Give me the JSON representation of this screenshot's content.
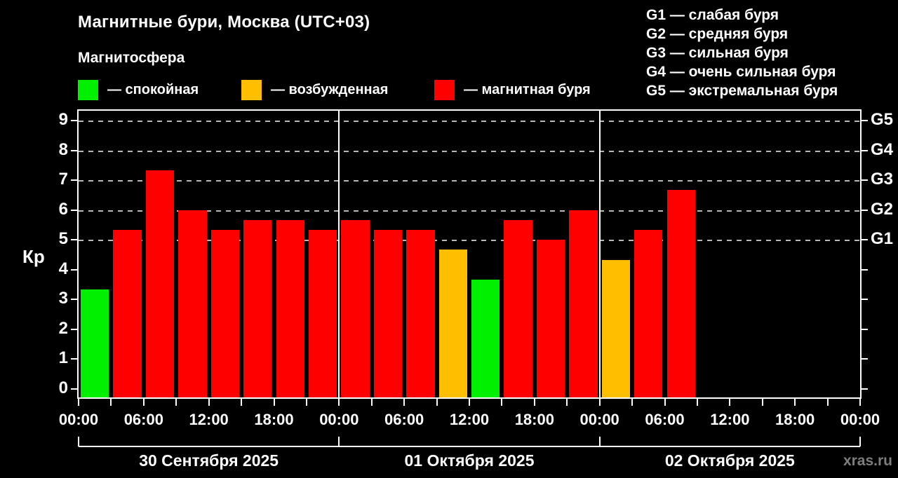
{
  "title": "Магнитные бури, Москва (UTC+03)",
  "subtitle": "Магнитосфера",
  "legend": {
    "items": [
      {
        "id": "quiet",
        "label": "— спокойная",
        "color": "#00f000"
      },
      {
        "id": "active",
        "label": "— возбужденная",
        "color": "#ffbe00"
      },
      {
        "id": "storm",
        "label": "— магнитная буря",
        "color": "#ff0000"
      }
    ]
  },
  "g_scale_legend": [
    "G1 — слабая буря",
    "G2 — средняя буря",
    "G3 — сильная буря",
    "G4 — очень сильная буря",
    "G5 — экстремальная буря"
  ],
  "watermark": "xras.ru",
  "chart_data": {
    "type": "bar",
    "title": "Магнитные бури, Москва (UTC+03)",
    "ylabel": "Кр",
    "ylim": [
      0,
      9.33
    ],
    "yticks": [
      0,
      1,
      2,
      3,
      4,
      5,
      6,
      7,
      8,
      9
    ],
    "gridlines_at": [
      5,
      6,
      7,
      8,
      9
    ],
    "grid": "dashed horizontal lines at Kp 5-9",
    "legend_position": "top",
    "right_axis_labels": {
      "5": "G1",
      "6": "G2",
      "7": "G3",
      "8": "G4",
      "9": "G5"
    },
    "hours_per_bar": 3,
    "x_tick_labels": [
      "00:00",
      "06:00",
      "12:00",
      "18:00",
      "00:00",
      "06:00",
      "12:00",
      "18:00",
      "00:00",
      "06:00",
      "12:00",
      "18:00",
      "00:00"
    ],
    "color_rule": {
      "quiet_below": 4,
      "active_below": 5,
      "storm_at_or_above": 5
    },
    "colors": {
      "quiet": "#00f000",
      "active": "#ffbe00",
      "storm": "#ff0000"
    },
    "days": [
      {
        "date": "30 Сентября 2025",
        "values": [
          3.33,
          5.33,
          7.33,
          6.0,
          5.33,
          5.67,
          5.67,
          5.33
        ]
      },
      {
        "date": "01 Октября 2025",
        "values": [
          5.67,
          5.33,
          5.33,
          4.67,
          3.67,
          5.67,
          5.0,
          6.0
        ]
      },
      {
        "date": "02 Октября 2025",
        "values": [
          4.33,
          5.33,
          6.67,
          null,
          null,
          null,
          null,
          null
        ]
      }
    ]
  }
}
